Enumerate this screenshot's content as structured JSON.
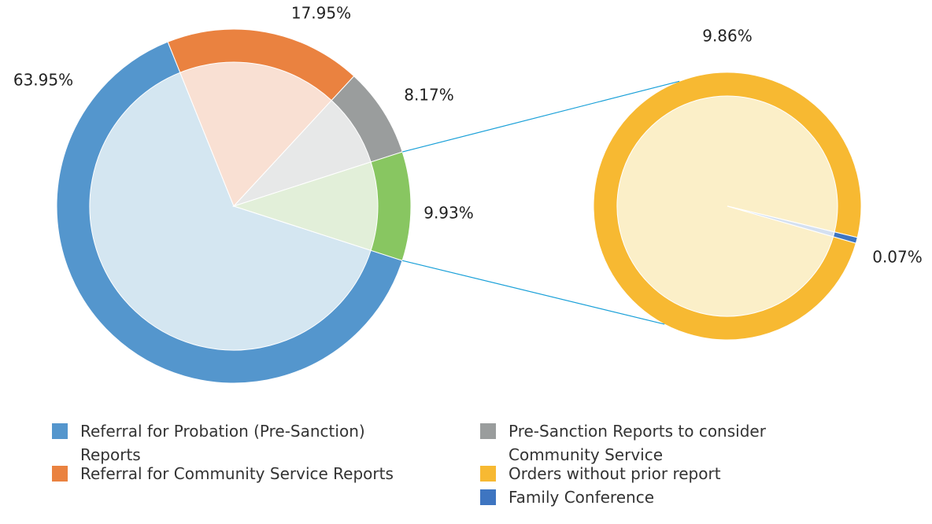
{
  "chart_data": {
    "type": "pie-of-pie",
    "categories": [
      "Referral for Probation (Pre-Sanction) Reports",
      "Referral for Community Service Reports",
      "Pre-Sanction Reports to consider Community Service",
      null
    ],
    "values": [
      63.95,
      17.95,
      8.17,
      9.93
    ],
    "value_labels": [
      "63.95%",
      "17.95%",
      "8.17%",
      "9.93%"
    ],
    "colors": [
      "#5496cd",
      "#ea8240",
      "#9a9d9d",
      "#88c661"
    ],
    "inner_colors": [
      "#d4e6f1",
      "#f9e0d3",
      "#e7e8e8",
      "#e2efd9"
    ],
    "secondary": {
      "categories": [
        "Orders without prior report",
        "Family Conference"
      ],
      "values": [
        9.86,
        0.07
      ],
      "value_labels": [
        "9.86%",
        "0.07%"
      ],
      "colors": [
        "#f7b932",
        "#3e75c1"
      ],
      "inner_colors": [
        "#fbefc8",
        "#d4e0f1"
      ]
    }
  }
}
